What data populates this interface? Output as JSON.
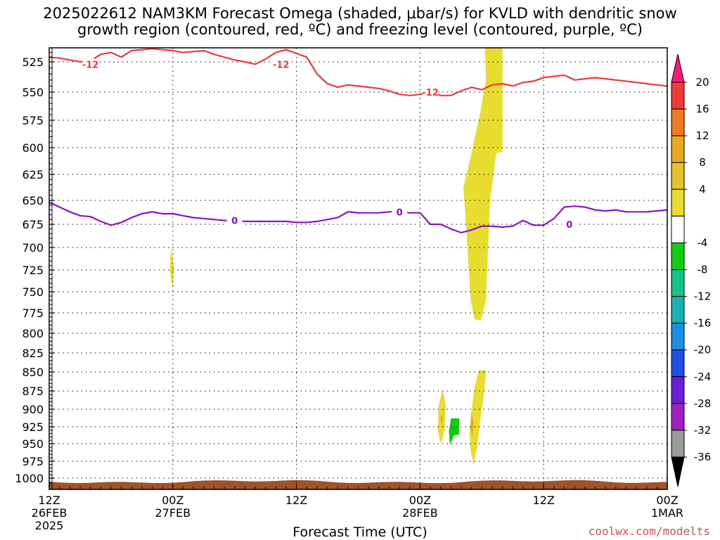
{
  "chart_data": {
    "type": "time-height cross section",
    "title_line1": "2025022612 NAM3KM Forecast Omega (shaded, μbar/s) for KVLD with dendritic snow",
    "title_line2": "growth region (contoured, red, ºC) and freezing level (contoured, purple, ºC)",
    "xlabel": "Forecast Time (UTC)",
    "credit": "coolwx.com/modelts",
    "x_range_hours": [
      0,
      60
    ],
    "x_ticks": [
      {
        "hour": 0,
        "label1": "12Z",
        "label2": "26FEB",
        "label3": "2025"
      },
      {
        "hour": 12,
        "label1": "00Z",
        "label2": "27FEB",
        "label3": ""
      },
      {
        "hour": 24,
        "label1": "12Z",
        "label2": "",
        "label3": ""
      },
      {
        "hour": 36,
        "label1": "00Z",
        "label2": "28FEB",
        "label3": ""
      },
      {
        "hour": 48,
        "label1": "12Z",
        "label2": "",
        "label3": ""
      },
      {
        "hour": 60,
        "label1": "00Z",
        "label2": "1MAR",
        "label3": ""
      }
    ],
    "y_axis": "pressure (hPa), reversed",
    "y_range": [
      510,
      1012
    ],
    "y_ticks": [
      525,
      550,
      575,
      600,
      625,
      650,
      675,
      700,
      725,
      750,
      775,
      800,
      825,
      850,
      875,
      900,
      925,
      950,
      975,
      1000
    ],
    "grid": true,
    "colorbar": {
      "labels": [
        "20",
        "16",
        "12",
        "8",
        "4",
        "-4",
        "-8",
        "-12",
        "-16",
        "-20",
        "-24",
        "-28",
        "-32",
        "-36"
      ],
      "colors": [
        "#ff1a7a",
        "#ee3a3a",
        "#f07a22",
        "#e6a91f",
        "#e8c22c",
        "#e8dd2e",
        "#ffffff",
        "#11cc11",
        "#15c28a",
        "#16b2b2",
        "#1a8fe6",
        "#1f4fe6",
        "#6a1fd6",
        "#a01ec2",
        "#9a9a9a",
        "#000000"
      ]
    },
    "series": [
      {
        "name": "-12",
        "color": "#ee3a3a",
        "x": [
          0,
          1,
          2,
          3,
          4,
          5,
          6,
          7,
          8,
          9,
          10,
          11,
          12,
          13,
          14,
          15,
          16,
          17,
          18,
          19,
          20,
          21,
          22,
          23,
          24,
          25,
          26,
          27,
          28,
          29,
          30,
          31,
          32,
          33,
          34,
          35,
          36,
          37,
          38,
          39,
          40,
          41,
          42,
          43,
          44,
          45,
          46,
          47,
          48,
          49,
          50,
          51,
          52,
          53,
          54,
          55,
          56,
          57,
          58,
          59,
          60
        ],
        "y": [
          520,
          521,
          523,
          525,
          524,
          517,
          515,
          520,
          513,
          512,
          511,
          512,
          513,
          515,
          514,
          513,
          517,
          520,
          523,
          525,
          527,
          522,
          515,
          512,
          516,
          520,
          535,
          543,
          546,
          544,
          545,
          546,
          547,
          549,
          552,
          553,
          552,
          550,
          553,
          553,
          549,
          546,
          548,
          544,
          543,
          545,
          542,
          541,
          538,
          537,
          536,
          540,
          539,
          538,
          539,
          540,
          541,
          542,
          543,
          544,
          545
        ],
        "labels": [
          {
            "x": 4,
            "y": 527
          },
          {
            "x": 22.5,
            "y": 527
          },
          {
            "x": 37,
            "y": 550
          }
        ]
      },
      {
        "name": "0",
        "color": "#8a14c6",
        "x": [
          0,
          1,
          2,
          3,
          4,
          5,
          6,
          7,
          8,
          9,
          10,
          11,
          12,
          13,
          14,
          15,
          16,
          17,
          18,
          19,
          20,
          21,
          22,
          23,
          24,
          25,
          26,
          27,
          28,
          29,
          30,
          31,
          32,
          33,
          34,
          35,
          36,
          37,
          38,
          39,
          40,
          41,
          42,
          43,
          44,
          45,
          46,
          47,
          48,
          49,
          50,
          51,
          52,
          53,
          54,
          55,
          56,
          57,
          58,
          59,
          60
        ],
        "y": [
          652,
          657,
          662,
          666,
          667,
          672,
          676,
          673,
          668,
          664,
          662,
          664,
          664,
          666,
          668,
          669,
          670,
          671,
          671,
          672,
          672,
          672,
          672,
          672,
          673,
          673,
          672,
          670,
          668,
          662,
          663,
          663,
          663,
          662,
          662,
          663,
          663,
          675,
          675,
          680,
          684,
          681,
          677,
          677,
          678,
          677,
          671,
          676,
          676,
          669,
          657,
          656,
          657,
          660,
          661,
          660,
          662,
          662,
          662,
          661,
          660
        ],
        "labels": [
          {
            "x": 18,
            "y": 671
          },
          {
            "x": 34,
            "y": 662
          },
          {
            "x": 50.5,
            "y": 675
          }
        ]
      }
    ],
    "shaded_regions": [
      {
        "value": "4 to 8",
        "color": "#e8dd2e",
        "description": "upward motion column near 28FEB 06Z-09Z",
        "polygon_hour_hpa": [
          [
            42.3,
            510
          ],
          [
            44.0,
            510
          ],
          [
            44.0,
            604
          ],
          [
            43.4,
            605
          ],
          [
            42.8,
            650
          ],
          [
            42.6,
            700
          ],
          [
            42.4,
            760
          ],
          [
            41.9,
            784
          ],
          [
            41.3,
            783
          ],
          [
            40.9,
            760
          ],
          [
            40.6,
            700
          ],
          [
            40.3,
            650
          ],
          [
            40.2,
            638
          ],
          [
            41.0,
            605
          ],
          [
            41.8,
            570
          ],
          [
            42.4,
            540
          ]
        ]
      },
      {
        "value": "4 to 8",
        "color": "#e8dd2e",
        "description": "small area near 27FEB 00Z",
        "polygon_hour_hpa": [
          [
            11.8,
            700
          ],
          [
            12.1,
            722
          ],
          [
            12.0,
            748
          ],
          [
            11.7,
            725
          ]
        ]
      },
      {
        "value": "4 to 8",
        "color": "#e8dd2e",
        "polygon_hour_hpa": [
          [
            41.7,
            848
          ],
          [
            42.4,
            848
          ],
          [
            42.2,
            880
          ],
          [
            41.8,
            920
          ],
          [
            41.6,
            950
          ],
          [
            41.2,
            980
          ],
          [
            40.9,
            960
          ],
          [
            40.8,
            930
          ],
          [
            41.0,
            900
          ],
          [
            41.3,
            870
          ]
        ]
      },
      {
        "value": "8 to 12",
        "color": "#e6a91f",
        "polygon_hour_hpa": [
          [
            41.0,
            905
          ],
          [
            41.2,
            920
          ],
          [
            41.1,
            940
          ],
          [
            40.9,
            925
          ]
        ]
      },
      {
        "value": "4 to 8",
        "color": "#e8dd2e",
        "polygon_hour_hpa": [
          [
            38.2,
            873
          ],
          [
            38.5,
            895
          ],
          [
            38.4,
            930
          ],
          [
            38.0,
            950
          ],
          [
            37.7,
            930
          ],
          [
            37.8,
            895
          ]
        ]
      },
      {
        "value": "8 to 12",
        "color": "#e6a91f",
        "polygon_hour_hpa": [
          [
            38.1,
            905
          ],
          [
            38.2,
            915
          ],
          [
            38.1,
            922
          ],
          [
            38.0,
            913
          ]
        ]
      },
      {
        "value": "-4 to -8",
        "color": "#11cc11",
        "polygon_hour_hpa": [
          [
            39.0,
            913
          ],
          [
            39.8,
            913
          ],
          [
            39.8,
            936
          ],
          [
            39.3,
            938
          ],
          [
            38.9,
            952
          ],
          [
            38.8,
            932
          ]
        ]
      }
    ],
    "terrain": {
      "color": "#a0522d",
      "top_hpa_range": [
        1003,
        1006
      ]
    }
  }
}
